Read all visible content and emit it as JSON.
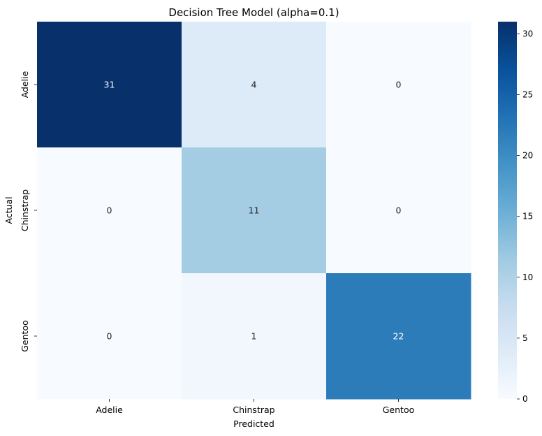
{
  "chart_data": {
    "type": "heatmap",
    "title": "Decision Tree Model (alpha=0.1)",
    "xlabel": "Predicted",
    "ylabel": "Actual",
    "x_categories": [
      "Adelie",
      "Chinstrap",
      "Gentoo"
    ],
    "y_categories": [
      "Adelie",
      "Chinstrap",
      "Gentoo"
    ],
    "values": [
      [
        31,
        4,
        0
      ],
      [
        0,
        11,
        0
      ],
      [
        0,
        1,
        22
      ]
    ],
    "colormap": "Blues",
    "vmin": 0,
    "vmax": 31,
    "colorbar_ticks": [
      0,
      5,
      10,
      15,
      20,
      25,
      30
    ],
    "annotations": true
  }
}
